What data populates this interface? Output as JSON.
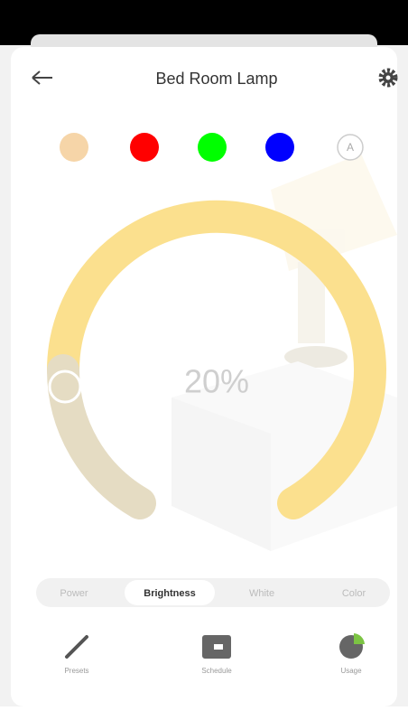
{
  "header": {
    "title": "Bed Room Lamp"
  },
  "color_options": {
    "auto_label": "A"
  },
  "brightness": {
    "label": "20%"
  },
  "tabs": [
    "Power",
    "Brightness",
    "White",
    "Color"
  ],
  "nav": [
    "Presets",
    "Schedule",
    "Usage"
  ]
}
